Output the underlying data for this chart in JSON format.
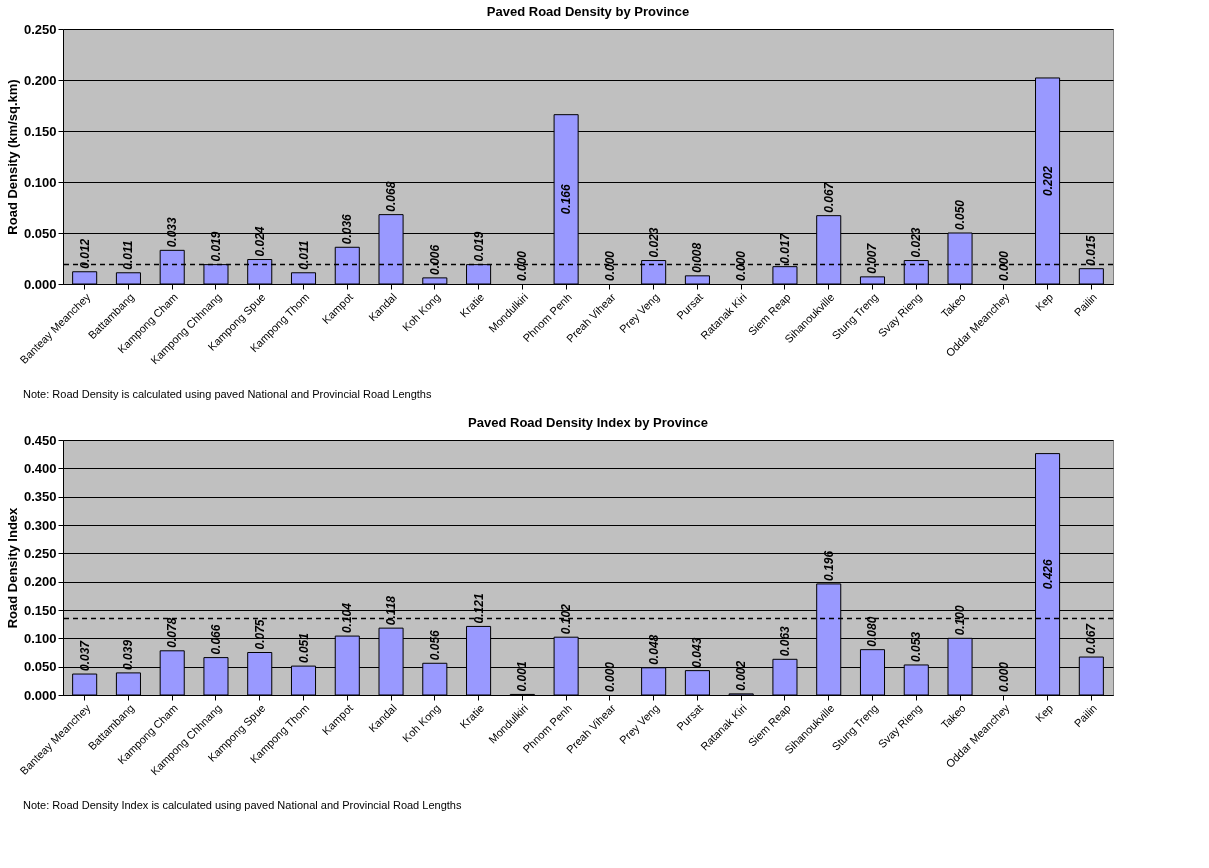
{
  "chart_data": [
    {
      "type": "bar",
      "title": "Paved Road Density by Province",
      "ylabel": "Road Density (km/sq.km)",
      "categories": [
        "Banteay Meanchey",
        "Battambang",
        "Kampong Cham",
        "Kampong Chhnang",
        "Kampong Spue",
        "Kampong Thom",
        "Kampot",
        "Kandal",
        "Koh Kong",
        "Kratie",
        "Mondulkiri",
        "Phnom Penh",
        "Preah Vihear",
        "Prey Veng",
        "Pursat",
        "Ratanak Kiri",
        "Siem Reap",
        "Sihanoukville",
        "Stung Treng",
        "Svay Rieng",
        "Takeo",
        "Oddar Meanchey",
        "Kep",
        "Pailin"
      ],
      "values": [
        0.012,
        0.011,
        0.033,
        0.019,
        0.024,
        0.011,
        0.036,
        0.068,
        0.006,
        0.019,
        0.0,
        0.166,
        0.0,
        0.023,
        0.008,
        0.0,
        0.017,
        0.067,
        0.007,
        0.023,
        0.05,
        0.0,
        0.202,
        0.015
      ],
      "value_labels": [
        "0.012",
        "0.011",
        "0.033",
        "0.019",
        "0.024",
        "0.011",
        "0.036",
        "0.068",
        "0.006",
        "0.019",
        "0.000",
        "0.166",
        "0.000",
        "0.023",
        "0.008",
        "0.000",
        "0.017",
        "0.067",
        "0.007",
        "0.023",
        "0.050",
        "0.000",
        "0.202",
        "0.015"
      ],
      "color": "#9999ff",
      "ylim": [
        0,
        0.25
      ],
      "yticks": [
        {
          "value": 0,
          "label": "0.000"
        },
        {
          "value": 0.05,
          "label": "0.050"
        },
        {
          "value": 0.1,
          "label": "0.100"
        },
        {
          "value": 0.15,
          "label": "0.150"
        },
        {
          "value": 0.2,
          "label": "0.200"
        },
        {
          "value": 0.25,
          "label": "0.250"
        }
      ],
      "grid": "y",
      "ref_lines": [
        {
          "axis": "y",
          "value": 0.019,
          "line_style": "dashed",
          "color": "#000000"
        }
      ],
      "annotations": [
        "Note: Road Density is calculated using paved National and Provincial Road Lengths"
      ]
    },
    {
      "type": "bar",
      "title": "Paved Road Density Index by Province",
      "ylabel": "Road Density Index",
      "categories": [
        "Banteay Meanchey",
        "Battambang",
        "Kampong Cham",
        "Kampong Chhnang",
        "Kampong Spue",
        "Kampong Thom",
        "Kampot",
        "Kandal",
        "Koh Kong",
        "Kratie",
        "Mondulkiri",
        "Phnom Penh",
        "Preah Vihear",
        "Prey Veng",
        "Pursat",
        "Ratanak Kiri",
        "Siem Reap",
        "Sihanoukville",
        "Stung Treng",
        "Svay Rieng",
        "Takeo",
        "Oddar Meanchey",
        "Kep",
        "Pailin"
      ],
      "values": [
        0.037,
        0.039,
        0.078,
        0.066,
        0.075,
        0.051,
        0.104,
        0.118,
        0.056,
        0.121,
        0.001,
        0.102,
        0.0,
        0.048,
        0.043,
        0.002,
        0.063,
        0.196,
        0.08,
        0.053,
        0.1,
        0.0,
        0.426,
        0.067
      ],
      "value_labels": [
        "0.037",
        "0.039",
        "0.078",
        "0.066",
        "0.075",
        "0.051",
        "0.104",
        "0.118",
        "0.056",
        "0.121",
        "0.001",
        "0.102",
        "0.000",
        "0.048",
        "0.043",
        "0.002",
        "0.063",
        "0.196",
        "0.080",
        "0.053",
        "0.100",
        "0.000",
        "0.426",
        "0.067"
      ],
      "color": "#9999ff",
      "ylim": [
        0,
        0.45
      ],
      "yticks": [
        {
          "value": 0,
          "label": "0.000"
        },
        {
          "value": 0.05,
          "label": "0.050"
        },
        {
          "value": 0.1,
          "label": "0.100"
        },
        {
          "value": 0.15,
          "label": "0.150"
        },
        {
          "value": 0.2,
          "label": "0.200"
        },
        {
          "value": 0.25,
          "label": "0.250"
        },
        {
          "value": 0.3,
          "label": "0.300"
        },
        {
          "value": 0.35,
          "label": "0.350"
        },
        {
          "value": 0.4,
          "label": "0.400"
        },
        {
          "value": 0.45,
          "label": "0.450"
        }
      ],
      "grid": "y",
      "ref_lines": [
        {
          "axis": "y",
          "value": 0.135,
          "line_style": "dashed",
          "color": "#000000"
        }
      ],
      "annotations": [
        "Note: Road Density Index is calculated using paved National and Provincial Road Lengths"
      ]
    }
  ]
}
